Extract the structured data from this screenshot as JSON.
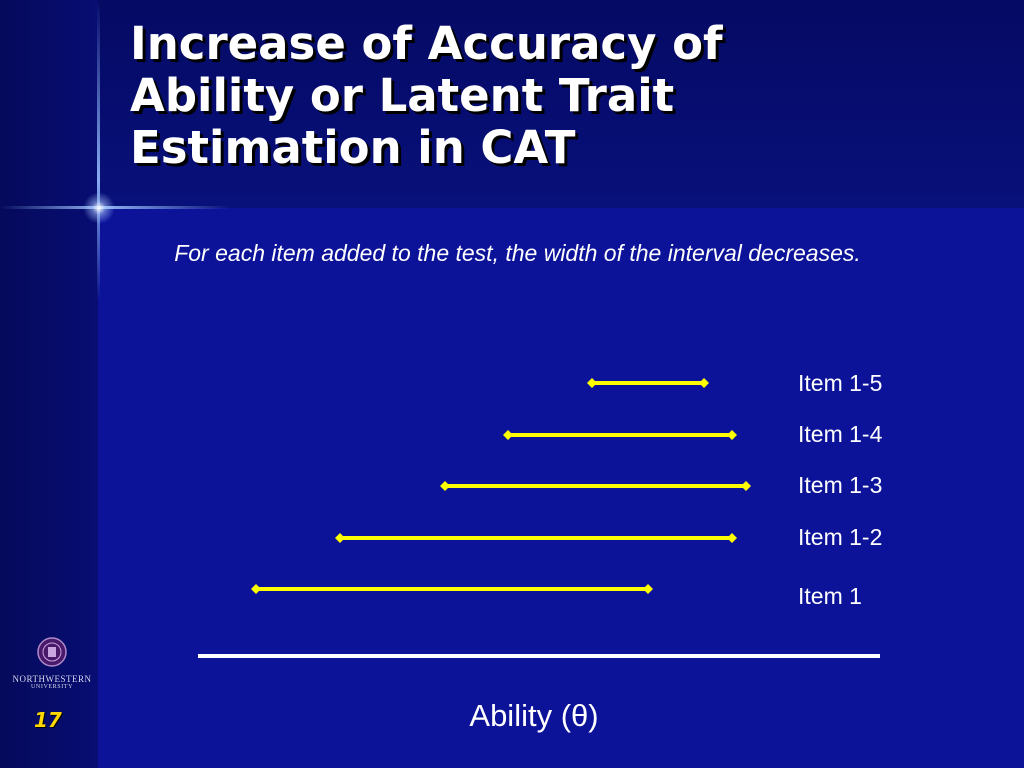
{
  "slide": {
    "title": "Increase of Accuracy of Ability or Latent Trait Estimation in CAT",
    "subtitle": "For each item added to the test, the width of the interval decreases.",
    "page_number": "17",
    "logo": {
      "name": "NORTHWESTERN",
      "sub": "UNIVERSITY"
    }
  },
  "chart_data": {
    "type": "interval",
    "xlabel": "Ability (θ)",
    "intervals": [
      {
        "label": "Item 1-5",
        "start": 0.56,
        "end": 0.72
      },
      {
        "label": "Item 1-4",
        "start": 0.44,
        "end": 0.76
      },
      {
        "label": "Item 1-3",
        "start": 0.35,
        "end": 0.78
      },
      {
        "label": "Item 1-2",
        "start": 0.2,
        "end": 0.76
      },
      {
        "label": "Item 1",
        "start": 0.08,
        "end": 0.64
      }
    ],
    "xlim": [
      0,
      1
    ]
  },
  "colors": {
    "background": "#0c1399",
    "interval": "#ffff00",
    "text": "#ffffff",
    "page_number": "#ffd700"
  }
}
